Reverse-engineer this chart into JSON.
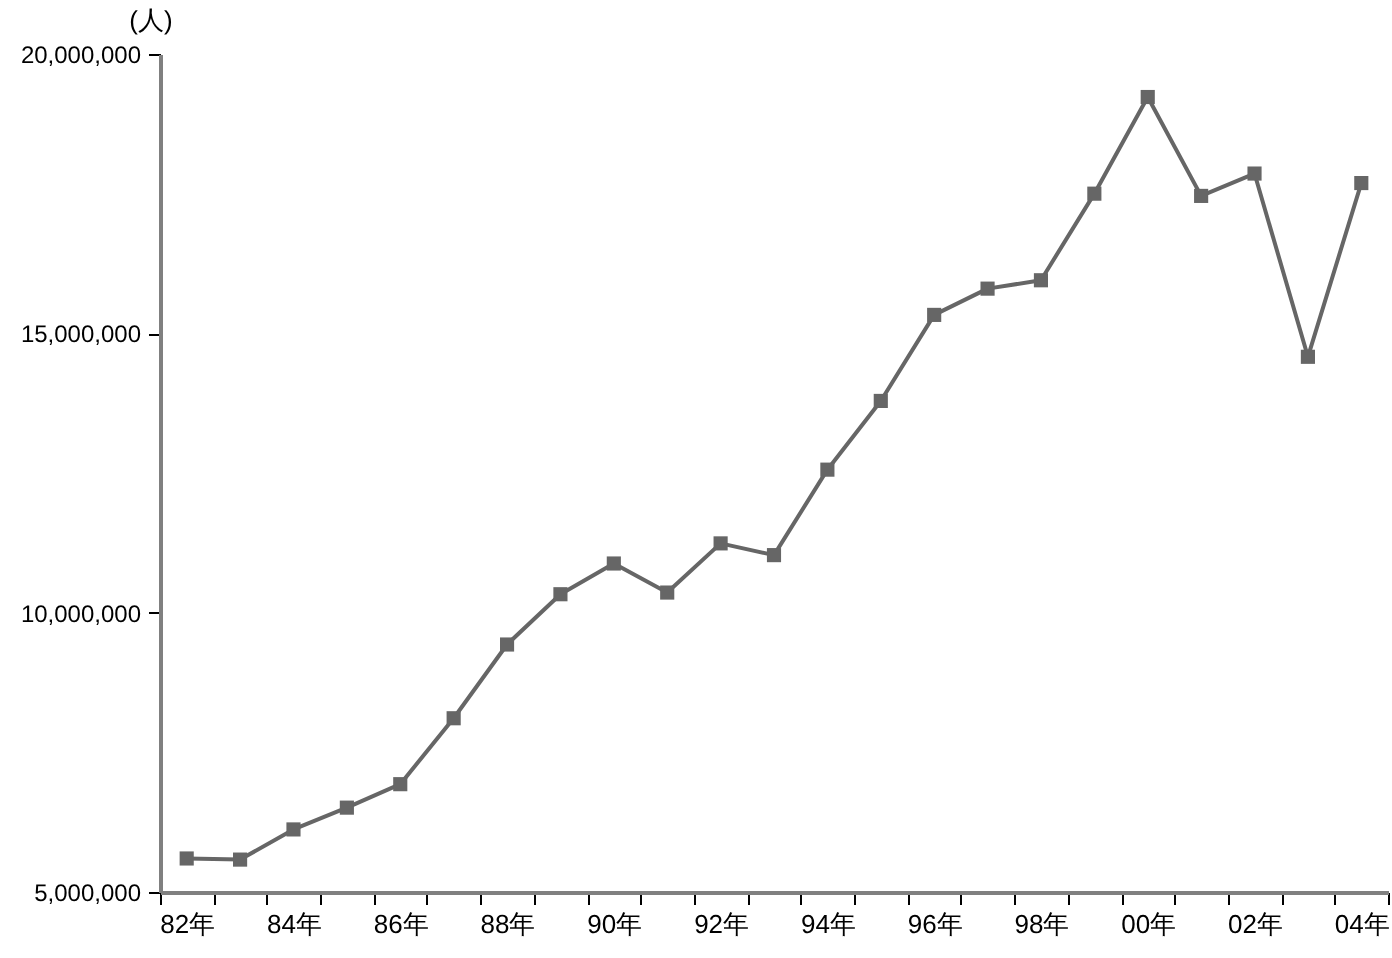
{
  "chart_data": {
    "type": "line",
    "ylabel": "(人)",
    "categories": [
      "82年",
      null,
      "84年",
      null,
      "86年",
      null,
      "88年",
      null,
      "90年",
      null,
      "92年",
      null,
      "94年",
      null,
      "96年",
      null,
      "98年",
      null,
      "00年",
      null,
      "02年",
      null,
      "04年"
    ],
    "series": [
      {
        "color": "#666666",
        "values": [
          5600000,
          5580000,
          6120000,
          6510000,
          6930000,
          8110000,
          9430000,
          10330000,
          10880000,
          10360000,
          11240000,
          11030000,
          12560000,
          13790000,
          15330000,
          15800000,
          15950000,
          17500000,
          19230000,
          17460000,
          17860000,
          14580000,
          17690000
        ]
      }
    ],
    "ylim": [
      5000000,
      20000000
    ],
    "yticks": [
      {
        "value": 5000000,
        "label": "5,000,000"
      },
      {
        "value": 10000000,
        "label": "10,000,000"
      },
      {
        "value": 15000000,
        "label": "15,000,000"
      },
      {
        "value": 20000000,
        "label": "20,000,000"
      }
    ],
    "grid": false,
    "marker": "square",
    "line_style": "solid"
  }
}
